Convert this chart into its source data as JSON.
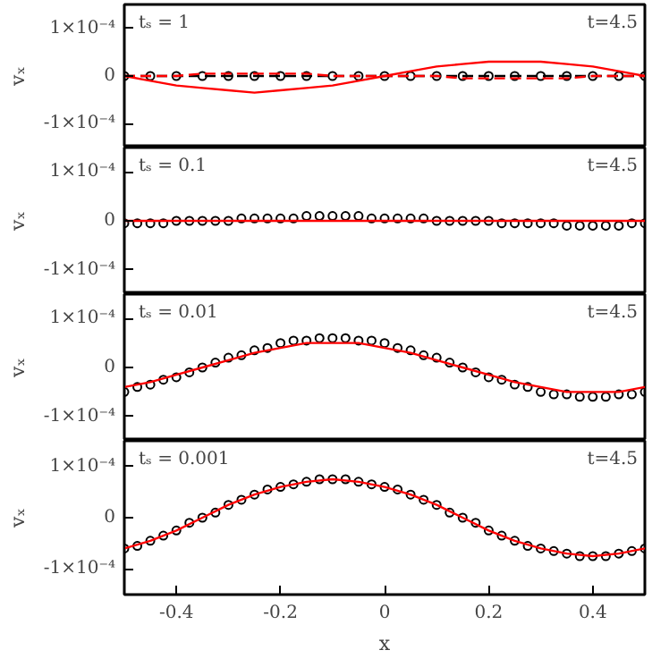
{
  "chart_data": [
    {
      "type": "line",
      "ylabel": "vₓ",
      "annotations": [
        "tₛ = 1",
        "t=4.5"
      ],
      "xlim": [
        -0.5,
        0.5
      ],
      "xticks": [
        -0.4,
        -0.2,
        0,
        0.2,
        0.4
      ],
      "ylim": [
        -0.00015,
        0.00015
      ],
      "yticks": [
        {
          "value": 0.0001,
          "label": "1×10⁻⁴"
        },
        {
          "value": 0,
          "label": "0"
        },
        {
          "value": -0.0001,
          "label": "-1×10⁻⁴"
        }
      ],
      "tick_labels": "y",
      "grid": false,
      "series": [
        {
          "type": "scatter",
          "marker": "circle",
          "color": "#000000",
          "x": [
            -0.5,
            -0.45,
            -0.4,
            -0.35,
            -0.3,
            -0.25,
            -0.2,
            -0.15,
            -0.1,
            -0.05,
            0,
            0.05,
            0.1,
            0.15,
            0.2,
            0.25,
            0.3,
            0.35,
            0.4,
            0.45,
            0.5
          ],
          "values": [
            0,
            0,
            0,
            0,
            0,
            0,
            0,
            0,
            0,
            0,
            0,
            0,
            0,
            0,
            0,
            0,
            0,
            0,
            0,
            0,
            0
          ]
        },
        {
          "line_style": "dashed",
          "color": "#000000",
          "x": [
            -0.5,
            0.5
          ],
          "values": [
            0,
            0
          ]
        },
        {
          "line_style": "dashed",
          "color": "#ff0000",
          "x": [
            -0.5,
            -0.45,
            -0.4,
            -0.35,
            -0.3,
            -0.25,
            -0.2,
            -0.15,
            -0.1,
            -0.05,
            0,
            0.05,
            0.1,
            0.15,
            0.2,
            0.25,
            0.3,
            0.35,
            0.4,
            0.45,
            0.5
          ],
          "values": [
            0,
            0,
            0,
            5e-06,
            5e-06,
            5e-06,
            5e-06,
            5e-06,
            0,
            0,
            0,
            0,
            0,
            -5e-06,
            -5e-06,
            -5e-06,
            -5e-06,
            -5e-06,
            0,
            0,
            0
          ]
        },
        {
          "line_style": "solid",
          "color": "#ff0000",
          "x": [
            -0.5,
            -0.45,
            -0.4,
            -0.35,
            -0.3,
            -0.25,
            -0.2,
            -0.15,
            -0.1,
            -0.05,
            0,
            0.05,
            0.1,
            0.15,
            0.2,
            0.25,
            0.3,
            0.35,
            0.4,
            0.45,
            0.5
          ],
          "values": [
            0,
            -1e-05,
            -2e-05,
            -2.5e-05,
            -3e-05,
            -3.5e-05,
            -3e-05,
            -2.5e-05,
            -2e-05,
            -1e-05,
            0,
            1e-05,
            2e-05,
            2.5e-05,
            3e-05,
            3e-05,
            3e-05,
            2.5e-05,
            2e-05,
            1e-05,
            0
          ]
        }
      ]
    },
    {
      "type": "line",
      "ylabel": "vₓ",
      "annotations": [
        "tₛ = 0.1",
        "t=4.5"
      ],
      "xlim": [
        -0.5,
        0.5
      ],
      "xticks": [
        -0.4,
        -0.2,
        0,
        0.2,
        0.4
      ],
      "ylim": [
        -0.00015,
        0.00015
      ],
      "yticks": [
        {
          "value": 0.0001,
          "label": "1×10⁻⁴"
        },
        {
          "value": 0,
          "label": "0"
        },
        {
          "value": -0.0001,
          "label": "-1×10⁻⁴"
        }
      ],
      "tick_labels": "y",
      "grid": false,
      "series": [
        {
          "type": "scatter",
          "marker": "circle",
          "color": "#000000",
          "x": [
            -0.5,
            -0.475,
            -0.45,
            -0.425,
            -0.4,
            -0.375,
            -0.35,
            -0.325,
            -0.3,
            -0.275,
            -0.25,
            -0.225,
            -0.2,
            -0.175,
            -0.15,
            -0.125,
            -0.1,
            -0.075,
            -0.05,
            -0.025,
            0,
            0.025,
            0.05,
            0.075,
            0.1,
            0.125,
            0.15,
            0.175,
            0.2,
            0.225,
            0.25,
            0.275,
            0.3,
            0.325,
            0.35,
            0.375,
            0.4,
            0.425,
            0.45,
            0.475,
            0.5
          ],
          "values": [
            -5e-06,
            -5e-06,
            -5e-06,
            -5e-06,
            0,
            0,
            0,
            0,
            0,
            5e-06,
            5e-06,
            5e-06,
            5e-06,
            5e-06,
            1e-05,
            1e-05,
            1e-05,
            1e-05,
            1e-05,
            5e-06,
            5e-06,
            5e-06,
            5e-06,
            5e-06,
            0,
            0,
            0,
            0,
            0,
            -5e-06,
            -5e-06,
            -5e-06,
            -5e-06,
            -5e-06,
            -1e-05,
            -1e-05,
            -1e-05,
            -1e-05,
            -1e-05,
            -5e-06,
            -5e-06
          ]
        },
        {
          "line_style": "solid",
          "color": "#ff0000",
          "x": [
            -0.5,
            -0.45,
            -0.4,
            -0.35,
            -0.3,
            -0.25,
            -0.2,
            -0.15,
            -0.1,
            -0.05,
            0,
            0.05,
            0.1,
            0.15,
            0.2,
            0.25,
            0.3,
            0.35,
            0.4,
            0.45,
            0.5
          ],
          "values": [
            0,
            0,
            0,
            0,
            0,
            0,
            0,
            0,
            0,
            0,
            0,
            0,
            0,
            0,
            0,
            0,
            0,
            0,
            0,
            0,
            0
          ]
        }
      ]
    },
    {
      "type": "line",
      "ylabel": "vₓ",
      "annotations": [
        "tₛ = 0.01",
        "t=4.5"
      ],
      "xlim": [
        -0.5,
        0.5
      ],
      "xticks": [
        -0.4,
        -0.2,
        0,
        0.2,
        0.4
      ],
      "ylim": [
        -0.00015,
        0.00015
      ],
      "yticks": [
        {
          "value": 0.0001,
          "label": "1×10⁻⁴"
        },
        {
          "value": 0,
          "label": "0"
        },
        {
          "value": -0.0001,
          "label": "-1×10⁻⁴"
        }
      ],
      "tick_labels": "y",
      "grid": false,
      "series": [
        {
          "type": "scatter",
          "marker": "circle",
          "color": "#000000",
          "x": [
            -0.5,
            -0.475,
            -0.45,
            -0.425,
            -0.4,
            -0.375,
            -0.35,
            -0.325,
            -0.3,
            -0.275,
            -0.25,
            -0.225,
            -0.2,
            -0.175,
            -0.15,
            -0.125,
            -0.1,
            -0.075,
            -0.05,
            -0.025,
            0,
            0.025,
            0.05,
            0.075,
            0.1,
            0.125,
            0.15,
            0.175,
            0.2,
            0.225,
            0.25,
            0.275,
            0.3,
            0.325,
            0.35,
            0.375,
            0.4,
            0.425,
            0.45,
            0.475,
            0.5
          ],
          "values": [
            -5e-05,
            -4e-05,
            -3.5e-05,
            -2.5e-05,
            -2e-05,
            -1e-05,
            0,
            1e-05,
            2e-05,
            2.5e-05,
            3.5e-05,
            4e-05,
            5e-05,
            5.5e-05,
            5.5e-05,
            6e-05,
            6e-05,
            6e-05,
            5.5e-05,
            5.5e-05,
            5e-05,
            4e-05,
            3.5e-05,
            2.5e-05,
            2e-05,
            1e-05,
            0,
            -1e-05,
            -2e-05,
            -2.5e-05,
            -3.5e-05,
            -4e-05,
            -5e-05,
            -5.5e-05,
            -5.5e-05,
            -6e-05,
            -6e-05,
            -6e-05,
            -5.5e-05,
            -5.5e-05,
            -5e-05
          ]
        },
        {
          "line_style": "solid",
          "color": "#ff0000",
          "x": [
            -0.5,
            -0.45,
            -0.4,
            -0.35,
            -0.3,
            -0.25,
            -0.2,
            -0.15,
            -0.1,
            -0.05,
            0,
            0.05,
            0.1,
            0.15,
            0.2,
            0.25,
            0.3,
            0.35,
            0.4,
            0.45,
            0.5
          ],
          "values": [
            -4e-05,
            -3e-05,
            -1.5e-05,
            0,
            1.5e-05,
            3e-05,
            4e-05,
            5e-05,
            5e-05,
            5e-05,
            4e-05,
            3e-05,
            1.5e-05,
            0,
            -1.5e-05,
            -3e-05,
            -4e-05,
            -5e-05,
            -5e-05,
            -5e-05,
            -4e-05
          ]
        }
      ]
    },
    {
      "type": "line",
      "xlabel": "x",
      "ylabel": "vₓ",
      "annotations": [
        "tₛ = 0.001",
        "t=4.5"
      ],
      "xlim": [
        -0.5,
        0.5
      ],
      "xticks": [
        -0.4,
        -0.2,
        0,
        0.2,
        0.4
      ],
      "ylim": [
        -0.00015,
        0.00015
      ],
      "yticks": [
        {
          "value": 0.0001,
          "label": "1×10⁻⁴"
        },
        {
          "value": 0,
          "label": "0"
        },
        {
          "value": -0.0001,
          "label": "-1×10⁻⁴"
        }
      ],
      "grid": false,
      "series": [
        {
          "type": "scatter",
          "marker": "circle",
          "color": "#000000",
          "x": [
            -0.5,
            -0.475,
            -0.45,
            -0.425,
            -0.4,
            -0.375,
            -0.35,
            -0.325,
            -0.3,
            -0.275,
            -0.25,
            -0.225,
            -0.2,
            -0.175,
            -0.15,
            -0.125,
            -0.1,
            -0.075,
            -0.05,
            -0.025,
            0,
            0.025,
            0.05,
            0.075,
            0.1,
            0.125,
            0.15,
            0.175,
            0.2,
            0.225,
            0.25,
            0.275,
            0.3,
            0.325,
            0.35,
            0.375,
            0.4,
            0.425,
            0.45,
            0.475,
            0.5
          ],
          "values": [
            -6e-05,
            -5.5e-05,
            -4.5e-05,
            -3.5e-05,
            -2.5e-05,
            -1e-05,
            0,
            1e-05,
            2.5e-05,
            3.5e-05,
            4.5e-05,
            5.5e-05,
            6e-05,
            6.5e-05,
            7e-05,
            7.5e-05,
            7.5e-05,
            7.5e-05,
            7e-05,
            6.5e-05,
            6e-05,
            5.5e-05,
            4.5e-05,
            3.5e-05,
            2.5e-05,
            1e-05,
            0,
            -1e-05,
            -2.5e-05,
            -3.5e-05,
            -4.5e-05,
            -5.5e-05,
            -6e-05,
            -6.5e-05,
            -7e-05,
            -7.5e-05,
            -7.5e-05,
            -7.5e-05,
            -7e-05,
            -6.5e-05,
            -6e-05
          ]
        },
        {
          "line_style": "solid",
          "color": "#ff0000",
          "x": [
            -0.5,
            -0.45,
            -0.4,
            -0.35,
            -0.3,
            -0.25,
            -0.2,
            -0.15,
            -0.1,
            -0.05,
            0,
            0.05,
            0.1,
            0.15,
            0.2,
            0.25,
            0.3,
            0.35,
            0.4,
            0.45,
            0.5
          ],
          "values": [
            -6e-05,
            -4.5e-05,
            -2.5e-05,
            0,
            2.5e-05,
            4.5e-05,
            6e-05,
            7e-05,
            7.5e-05,
            7e-05,
            6e-05,
            4.5e-05,
            2.5e-05,
            0,
            -2.5e-05,
            -4.5e-05,
            -6e-05,
            -7e-05,
            -7.5e-05,
            -7e-05,
            -6e-05
          ]
        }
      ]
    }
  ]
}
